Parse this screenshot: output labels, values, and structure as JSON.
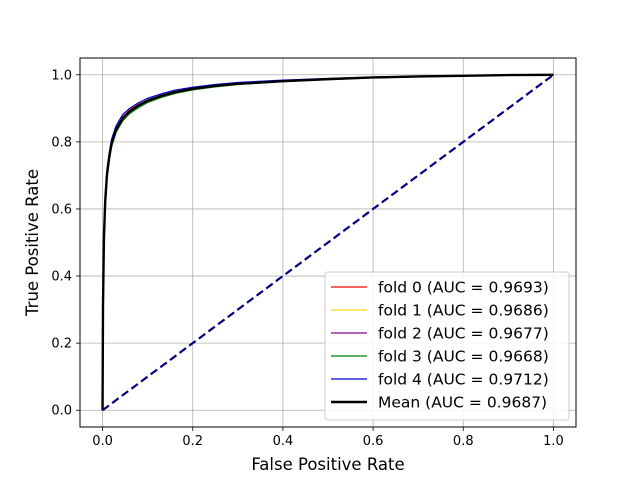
{
  "chart_data": {
    "type": "line",
    "title": "",
    "xlabel": "False Positive Rate",
    "ylabel": "True Positive Rate",
    "xlim": [
      -0.05,
      1.05
    ],
    "ylim": [
      -0.05,
      1.05
    ],
    "x_ticks": [
      "0.0",
      "0.2",
      "0.4",
      "0.6",
      "0.8",
      "1.0"
    ],
    "y_ticks": [
      "0.0",
      "0.2",
      "0.4",
      "0.6",
      "0.8",
      "1.0"
    ],
    "grid": true,
    "legend_position": "lower-right",
    "series": [
      {
        "name": "fold 0 (AUC = 0.9693)",
        "color": "#ff0000",
        "line_width": 1.2,
        "x": [
          0,
          0.001,
          0.003,
          0.006,
          0.01,
          0.015,
          0.02,
          0.03,
          0.045,
          0.06,
          0.08,
          0.1,
          0.13,
          0.16,
          0.2,
          0.25,
          0.3,
          0.4,
          0.5,
          0.6,
          0.7,
          0.8,
          0.9,
          1.0
        ],
        "y": [
          0,
          0.32,
          0.52,
          0.63,
          0.71,
          0.76,
          0.8,
          0.84,
          0.875,
          0.895,
          0.912,
          0.925,
          0.938,
          0.95,
          0.96,
          0.968,
          0.974,
          0.982,
          0.988,
          0.992,
          0.995,
          0.997,
          0.999,
          1.0
        ]
      },
      {
        "name": "fold 1 (AUC = 0.9686)",
        "color": "#ffd700",
        "line_width": 1.2,
        "x": [
          0,
          0.001,
          0.003,
          0.006,
          0.01,
          0.015,
          0.02,
          0.03,
          0.045,
          0.06,
          0.08,
          0.1,
          0.13,
          0.16,
          0.2,
          0.25,
          0.3,
          0.4,
          0.5,
          0.6,
          0.7,
          0.8,
          0.9,
          1.0
        ],
        "y": [
          0,
          0.3,
          0.5,
          0.62,
          0.7,
          0.755,
          0.795,
          0.835,
          0.87,
          0.89,
          0.908,
          0.921,
          0.935,
          0.947,
          0.957,
          0.966,
          0.972,
          0.981,
          0.987,
          0.991,
          0.995,
          0.997,
          0.999,
          1.0
        ]
      },
      {
        "name": "fold 2 (AUC = 0.9677)",
        "color": "#8b008b",
        "line_width": 1.2,
        "x": [
          0,
          0.001,
          0.003,
          0.006,
          0.01,
          0.015,
          0.02,
          0.03,
          0.045,
          0.06,
          0.08,
          0.1,
          0.13,
          0.16,
          0.2,
          0.25,
          0.3,
          0.4,
          0.5,
          0.6,
          0.7,
          0.8,
          0.9,
          1.0
        ],
        "y": [
          0,
          0.29,
          0.49,
          0.61,
          0.695,
          0.75,
          0.79,
          0.832,
          0.867,
          0.888,
          0.906,
          0.92,
          0.934,
          0.946,
          0.956,
          0.965,
          0.972,
          0.98,
          0.986,
          0.991,
          0.994,
          0.997,
          0.999,
          1.0
        ]
      },
      {
        "name": "fold 3 (AUC = 0.9668)",
        "color": "#008000",
        "line_width": 1.2,
        "x": [
          0,
          0.001,
          0.003,
          0.006,
          0.01,
          0.015,
          0.02,
          0.03,
          0.045,
          0.06,
          0.08,
          0.1,
          0.13,
          0.16,
          0.2,
          0.25,
          0.3,
          0.4,
          0.5,
          0.6,
          0.7,
          0.8,
          0.9,
          1.0
        ],
        "y": [
          0,
          0.28,
          0.48,
          0.6,
          0.69,
          0.745,
          0.785,
          0.828,
          0.863,
          0.884,
          0.902,
          0.917,
          0.932,
          0.944,
          0.955,
          0.964,
          0.971,
          0.98,
          0.986,
          0.991,
          0.994,
          0.997,
          0.999,
          1.0
        ]
      },
      {
        "name": "fold 4 (AUC = 0.9712)",
        "color": "#0000cd",
        "line_width": 1.2,
        "x": [
          0,
          0.001,
          0.003,
          0.006,
          0.01,
          0.015,
          0.02,
          0.03,
          0.045,
          0.06,
          0.08,
          0.1,
          0.13,
          0.16,
          0.2,
          0.25,
          0.3,
          0.4,
          0.5,
          0.6,
          0.7,
          0.8,
          0.9,
          1.0
        ],
        "y": [
          0,
          0.34,
          0.54,
          0.645,
          0.72,
          0.77,
          0.808,
          0.848,
          0.882,
          0.9,
          0.917,
          0.93,
          0.943,
          0.954,
          0.963,
          0.971,
          0.977,
          0.984,
          0.989,
          0.993,
          0.996,
          0.998,
          0.999,
          1.0
        ]
      },
      {
        "name": "Mean (AUC = 0.9687)",
        "color": "#000000",
        "line_width": 2.4,
        "x": [
          0,
          0.001,
          0.003,
          0.006,
          0.01,
          0.015,
          0.02,
          0.03,
          0.045,
          0.06,
          0.08,
          0.1,
          0.13,
          0.16,
          0.2,
          0.25,
          0.3,
          0.4,
          0.5,
          0.6,
          0.7,
          0.8,
          0.9,
          1.0
        ],
        "y": [
          0,
          0.31,
          0.51,
          0.625,
          0.705,
          0.756,
          0.795,
          0.836,
          0.871,
          0.891,
          0.909,
          0.923,
          0.937,
          0.948,
          0.958,
          0.967,
          0.973,
          0.981,
          0.987,
          0.992,
          0.995,
          0.997,
          0.999,
          1.0
        ]
      }
    ],
    "reference_line": {
      "x": [
        0,
        1
      ],
      "y": [
        0,
        1
      ],
      "color": "#000080",
      "style": "dashed",
      "line_width": 2.2
    }
  }
}
